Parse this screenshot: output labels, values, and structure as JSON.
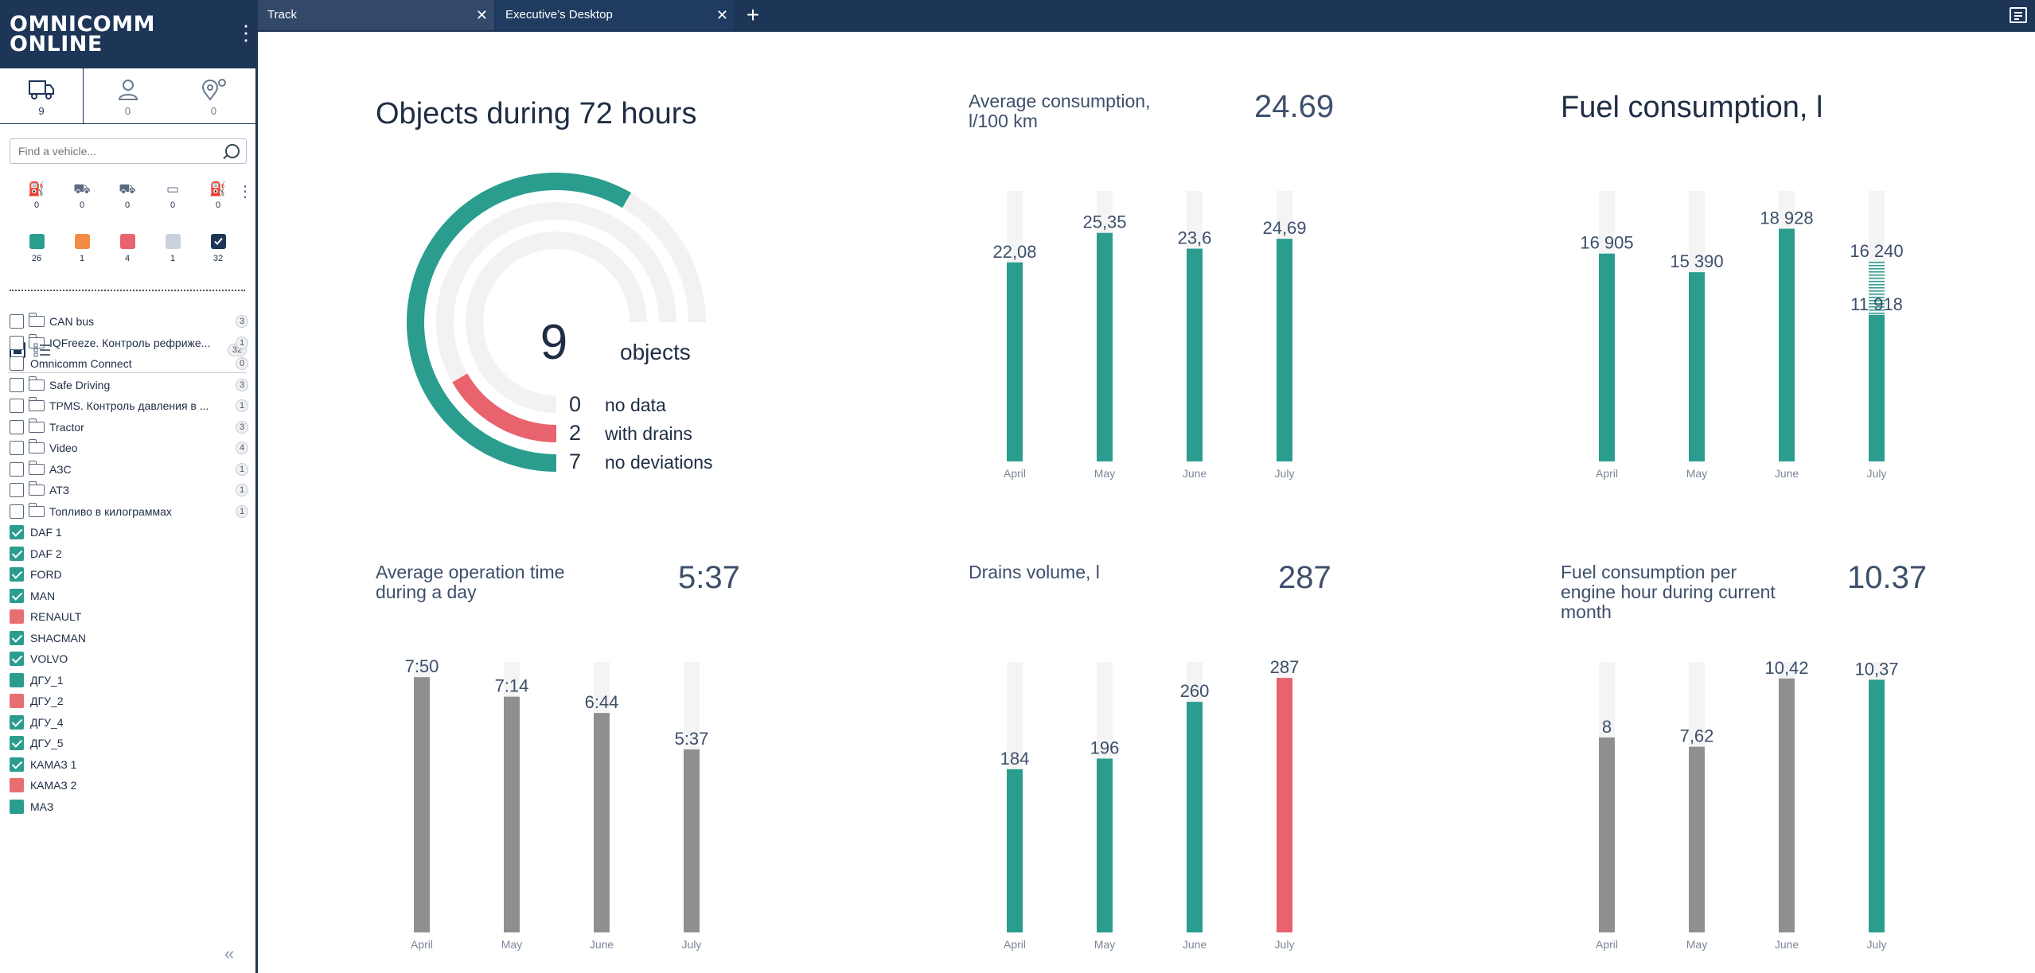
{
  "brand": {
    "logo_line1": "OMNICOMM",
    "logo_line2": "ONLINE"
  },
  "tabs": [
    {
      "label": "Track"
    },
    {
      "label": "Executive’s Desktop"
    }
  ],
  "sidebar": {
    "mode_tabs": [
      {
        "icon": "truck-icon",
        "count": "9"
      },
      {
        "icon": "person-icon",
        "count": "0"
      },
      {
        "icon": "geofence-icon",
        "count": "0"
      }
    ],
    "search_placeholder": "Find a vehicle...",
    "state_filters": [
      {
        "icon": "refuel-icon",
        "count": "0"
      },
      {
        "icon": "moving-icon",
        "count": "0"
      },
      {
        "icon": "parked-icon",
        "count": "0"
      },
      {
        "icon": "bed-icon",
        "count": "0"
      },
      {
        "icon": "fuel-pump-icon",
        "count": "0"
      }
    ],
    "status_filters": [
      {
        "color": "#2a9d8f",
        "count": "26"
      },
      {
        "color": "#f28c45",
        "count": "1"
      },
      {
        "color": "#e8636d",
        "count": "4"
      },
      {
        "color": "#c9d2dd",
        "count": "1"
      },
      {
        "color": "#1d3557",
        "count": "32"
      }
    ],
    "list_total": "32",
    "groups": [
      {
        "label": "CAN bus",
        "count": "3"
      },
      {
        "label": "IQFreeze. Контроль рефриже...",
        "count": "1"
      },
      {
        "label": "Omnicomm Connect",
        "count": "0"
      },
      {
        "label": "Safe Driving",
        "count": "3"
      },
      {
        "label": "TPMS. Контроль давления в ...",
        "count": "1"
      },
      {
        "label": "Tractor",
        "count": "3"
      },
      {
        "label": "Video",
        "count": "4"
      },
      {
        "label": "АЗС",
        "count": "1"
      },
      {
        "label": "АТЗ",
        "count": "1"
      },
      {
        "label": "Топливо в килограммах",
        "count": "1"
      }
    ],
    "vehicles": [
      {
        "label": "DAF 1",
        "state": "checked"
      },
      {
        "label": "DAF 2",
        "state": "checked"
      },
      {
        "label": "FORD",
        "state": "checked"
      },
      {
        "label": "MAN",
        "state": "checked"
      },
      {
        "label": "RENAULT",
        "state": "red"
      },
      {
        "label": "SHACMAN",
        "state": "checked"
      },
      {
        "label": "VOLVO",
        "state": "checked"
      },
      {
        "label": "ДГУ_1",
        "state": "teal"
      },
      {
        "label": "ДГУ_2",
        "state": "red"
      },
      {
        "label": "ДГУ_4",
        "state": "checked"
      },
      {
        "label": "ДГУ_5",
        "state": "checked"
      },
      {
        "label": "КАМАЗ 1",
        "state": "checked"
      },
      {
        "label": "КАМАЗ 2",
        "state": "red"
      },
      {
        "label": "МАЗ",
        "state": "teal"
      }
    ]
  },
  "objects_widget": {
    "title": "Objects during 72 hours",
    "total": "9",
    "total_label": "objects",
    "rows": [
      {
        "value": "0",
        "label": "no data"
      },
      {
        "value": "2",
        "label": "with drains"
      },
      {
        "value": "7",
        "label": "no deviations"
      }
    ],
    "colors": {
      "deviations": "#2a9d8f",
      "drains": "#e8636d",
      "track": "#f2f2f2"
    }
  },
  "chart_data": [
    {
      "type": "bar",
      "title": "Average consumption, l/100 km",
      "summary": "24.69",
      "categories": [
        "April",
        "May",
        "June",
        "July"
      ],
      "values": [
        22.08,
        25.35,
        23.6,
        24.69
      ],
      "labels": [
        "22,08",
        "25,35",
        "23,6",
        "24,69"
      ],
      "colors": [
        "#2a9d8f",
        "#2a9d8f",
        "#2a9d8f",
        "#2a9d8f"
      ],
      "ylim": [
        0,
        30
      ]
    },
    {
      "type": "bar",
      "title": "Fuel consumption, l",
      "summary": "",
      "categories": [
        "April",
        "May",
        "June",
        "July"
      ],
      "values": [
        16905,
        15390,
        18928,
        11918
      ],
      "projected": [
        null,
        null,
        null,
        16240
      ],
      "labels": [
        "16 905",
        "15 390",
        "18 928",
        "11 918"
      ],
      "projected_labels": [
        "",
        "",
        "",
        "16 240"
      ],
      "colors": [
        "#2a9d8f",
        "#2a9d8f",
        "#2a9d8f",
        "#2a9d8f"
      ],
      "ylim": [
        0,
        22000
      ]
    },
    {
      "type": "bar",
      "title": "Average operation time during a day",
      "summary": "5:37",
      "categories": [
        "April",
        "May",
        "June",
        "July"
      ],
      "values": [
        7.833,
        7.233,
        6.733,
        5.617
      ],
      "labels": [
        "7:50",
        "7:14",
        "6:44",
        "5:37"
      ],
      "colors": [
        "#8f8f8f",
        "#8f8f8f",
        "#8f8f8f",
        "#8f8f8f"
      ],
      "ylim": [
        0,
        8.3
      ]
    },
    {
      "type": "bar",
      "title": "Drains volume, l",
      "summary": "287",
      "categories": [
        "April",
        "May",
        "June",
        "July"
      ],
      "values": [
        184,
        196,
        260,
        287
      ],
      "labels": [
        "184",
        "196",
        "260",
        "287"
      ],
      "colors": [
        "#2a9d8f",
        "#2a9d8f",
        "#2a9d8f",
        "#e8636d"
      ],
      "ylim": [
        0,
        305
      ]
    },
    {
      "type": "bar",
      "title": "Fuel consumption per engine hour during current month",
      "summary": "10.37",
      "categories": [
        "April",
        "May",
        "June",
        "July"
      ],
      "values": [
        8,
        7.62,
        10.42,
        10.37
      ],
      "labels": [
        "8",
        "7,62",
        "10,42",
        "10,37"
      ],
      "colors": [
        "#8f8f8f",
        "#8f8f8f",
        "#8f8f8f",
        "#2a9d8f"
      ],
      "ylim": [
        0,
        11.1
      ]
    }
  ]
}
